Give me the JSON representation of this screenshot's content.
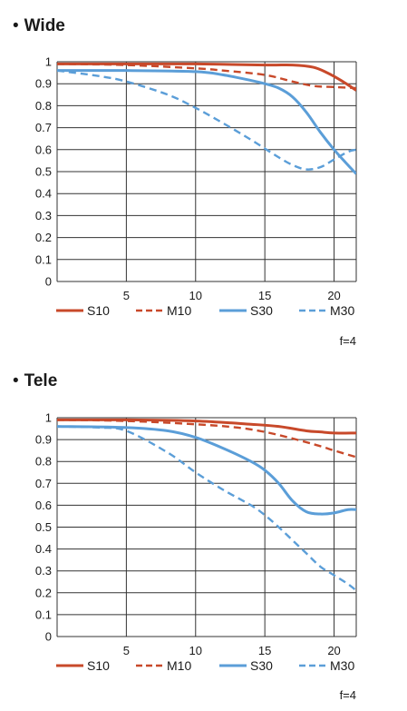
{
  "colors": {
    "s10": "#c8492a",
    "m10": "#c8492a",
    "s30": "#5b9ed8",
    "m30": "#5b9ed8",
    "grid": "#333333"
  },
  "chart_data": [
    {
      "type": "line",
      "title": "Wide",
      "xlabel": "",
      "ylabel": "",
      "xlim": [
        0,
        21.6
      ],
      "ylim": [
        0,
        1
      ],
      "xticks": [
        5,
        10,
        15,
        20
      ],
      "yticks": [
        0,
        0.1,
        0.2,
        0.3,
        0.4,
        0.5,
        0.6,
        0.7,
        0.8,
        0.9,
        1
      ],
      "ytick_labels": [
        "0",
        "0.1",
        "0.2",
        "0.3",
        "0.4",
        "0.5",
        "0.6",
        "0.7",
        "0.8",
        "0.9",
        "1"
      ],
      "grid": true,
      "legend": "bottom",
      "note": "f=4",
      "series": [
        {
          "name": "S10",
          "style": "solid",
          "color": "#c8492a",
          "x": [
            0,
            5,
            10,
            15,
            17,
            18.5,
            19.5,
            20.5,
            21.6
          ],
          "y": [
            0.99,
            0.99,
            0.99,
            0.985,
            0.985,
            0.975,
            0.95,
            0.915,
            0.87
          ]
        },
        {
          "name": "M10",
          "style": "dashed",
          "color": "#c8492a",
          "x": [
            0,
            5,
            10,
            12,
            15,
            17,
            18.5,
            20,
            21.6
          ],
          "y": [
            0.99,
            0.985,
            0.97,
            0.96,
            0.94,
            0.91,
            0.89,
            0.885,
            0.88
          ]
        },
        {
          "name": "S30",
          "style": "solid",
          "color": "#5b9ed8",
          "x": [
            0,
            5,
            10,
            12,
            14,
            15,
            16,
            17,
            18,
            19,
            20,
            21,
            21.6
          ],
          "y": [
            0.96,
            0.96,
            0.955,
            0.94,
            0.915,
            0.9,
            0.88,
            0.84,
            0.77,
            0.68,
            0.6,
            0.53,
            0.49
          ]
        },
        {
          "name": "M30",
          "style": "dashed",
          "color": "#5b9ed8",
          "x": [
            0,
            3,
            5,
            8,
            10,
            12,
            14,
            15,
            16,
            17,
            18,
            19,
            20,
            21,
            21.6
          ],
          "y": [
            0.96,
            0.935,
            0.91,
            0.85,
            0.79,
            0.72,
            0.645,
            0.605,
            0.565,
            0.53,
            0.51,
            0.52,
            0.555,
            0.59,
            0.6
          ]
        }
      ]
    },
    {
      "type": "line",
      "title": "Tele",
      "xlabel": "",
      "ylabel": "",
      "xlim": [
        0,
        21.6
      ],
      "ylim": [
        0,
        1
      ],
      "xticks": [
        5,
        10,
        15,
        20
      ],
      "yticks": [
        0,
        0.1,
        0.2,
        0.3,
        0.4,
        0.5,
        0.6,
        0.7,
        0.8,
        0.9,
        1
      ],
      "ytick_labels": [
        "0",
        "0.1",
        "0.2",
        "0.3",
        "0.4",
        "0.5",
        "0.6",
        "0.7",
        "0.8",
        "0.9",
        "1"
      ],
      "grid": true,
      "legend": "bottom",
      "note": "f=4",
      "series": [
        {
          "name": "S10",
          "style": "solid",
          "color": "#c8492a",
          "x": [
            0,
            5,
            10,
            14,
            16,
            18,
            19,
            20,
            21.6
          ],
          "y": [
            0.99,
            0.99,
            0.985,
            0.97,
            0.96,
            0.94,
            0.935,
            0.93,
            0.93
          ]
        },
        {
          "name": "M10",
          "style": "dashed",
          "color": "#c8492a",
          "x": [
            0,
            5,
            10,
            13,
            15,
            17,
            19,
            20,
            21.6
          ],
          "y": [
            0.99,
            0.985,
            0.97,
            0.955,
            0.935,
            0.905,
            0.87,
            0.85,
            0.82
          ]
        },
        {
          "name": "S30",
          "style": "solid",
          "color": "#5b9ed8",
          "x": [
            0,
            5,
            8,
            10,
            12,
            14,
            15,
            16,
            17,
            18,
            19,
            20,
            21,
            21.6
          ],
          "y": [
            0.96,
            0.955,
            0.94,
            0.91,
            0.86,
            0.8,
            0.76,
            0.7,
            0.62,
            0.57,
            0.56,
            0.565,
            0.58,
            0.58
          ]
        },
        {
          "name": "M30",
          "style": "dashed",
          "color": "#5b9ed8",
          "x": [
            0,
            3,
            5,
            8,
            10,
            12,
            14,
            15,
            16,
            17,
            18,
            19,
            20,
            21,
            21.6
          ],
          "y": [
            0.96,
            0.955,
            0.94,
            0.84,
            0.75,
            0.67,
            0.6,
            0.555,
            0.5,
            0.44,
            0.38,
            0.32,
            0.28,
            0.24,
            0.21
          ]
        }
      ]
    }
  ]
}
